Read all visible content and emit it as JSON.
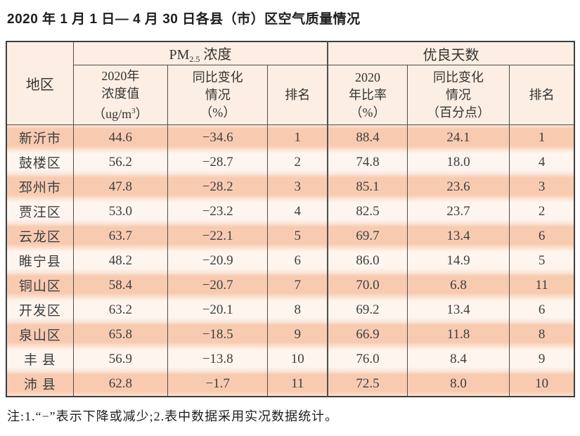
{
  "title": "2020 年 1 月 1 日— 4 月 30 日各县（市）区空气质量情况",
  "note": "注:1.“−”表示下降或减少;2.表中数据采用实况数据统计。",
  "colors": {
    "row_highlight": "#f8cbb1",
    "row_light": "#fdf5ee",
    "header_bg": "#fceee3",
    "border": "#4e4e4e"
  },
  "table": {
    "region_header": "地区",
    "pm_group": {
      "prefix": "PM",
      "sub": "2.5",
      "suffix": " 浓度"
    },
    "days_group": "优良天数",
    "sub_headers": {
      "pm_value": {
        "line1": "2020年",
        "line2": "浓度值",
        "line3_pre": "（ug/m",
        "line3_sup": "3",
        "line3_post": "）"
      },
      "pm_change": {
        "line1": "同比变化",
        "line2": "情况",
        "line3": "（%）"
      },
      "pm_rank": "排名",
      "days_rate": {
        "line1": "2020",
        "line2": "年比率",
        "line3": "（%）"
      },
      "days_change": {
        "line1": "同比变化",
        "line2": "情况",
        "line3": "（百分点）"
      },
      "days_rank": "排名"
    },
    "columns": [
      "region",
      "pm_value",
      "pm_change",
      "pm_rank",
      "days_rate",
      "days_change",
      "days_rank"
    ],
    "rows": [
      {
        "region": "新沂市",
        "pm_value": "44.6",
        "pm_change": "−34.6",
        "pm_rank": "1",
        "days_rate": "88.4",
        "days_change": "24.1",
        "days_rank": "1"
      },
      {
        "region": "鼓楼区",
        "pm_value": "56.2",
        "pm_change": "−28.7",
        "pm_rank": "2",
        "days_rate": "74.8",
        "days_change": "18.0",
        "days_rank": "4"
      },
      {
        "region": "邳州市",
        "pm_value": "47.8",
        "pm_change": "−28.2",
        "pm_rank": "3",
        "days_rate": "85.1",
        "days_change": "23.6",
        "days_rank": "3"
      },
      {
        "region": "贾汪区",
        "pm_value": "53.0",
        "pm_change": "−23.2",
        "pm_rank": "4",
        "days_rate": "82.5",
        "days_change": "23.7",
        "days_rank": "2"
      },
      {
        "region": "云龙区",
        "pm_value": "63.7",
        "pm_change": "−22.1",
        "pm_rank": "5",
        "days_rate": "69.7",
        "days_change": "13.4",
        "days_rank": "6"
      },
      {
        "region": "睢宁县",
        "pm_value": "48.2",
        "pm_change": "−20.9",
        "pm_rank": "6",
        "days_rate": "86.0",
        "days_change": "14.9",
        "days_rank": "5"
      },
      {
        "region": "铜山区",
        "pm_value": "58.4",
        "pm_change": "−20.7",
        "pm_rank": "7",
        "days_rate": "70.0",
        "days_change": "6.8",
        "days_rank": "11"
      },
      {
        "region": "开发区",
        "pm_value": "63.2",
        "pm_change": "−20.1",
        "pm_rank": "8",
        "days_rate": "69.2",
        "days_change": "13.4",
        "days_rank": "6"
      },
      {
        "region": "泉山区",
        "pm_value": "65.8",
        "pm_change": "−18.5",
        "pm_rank": "9",
        "days_rate": "66.9",
        "days_change": "11.8",
        "days_rank": "8"
      },
      {
        "region": "丰 县",
        "pm_value": "56.9",
        "pm_change": "−13.8",
        "pm_rank": "10",
        "days_rate": "76.0",
        "days_change": "8.4",
        "days_rank": "9"
      },
      {
        "region": "沛 县",
        "pm_value": "62.8",
        "pm_change": "−1.7",
        "pm_rank": "11",
        "days_rate": "72.5",
        "days_change": "8.0",
        "days_rank": "10"
      }
    ]
  }
}
